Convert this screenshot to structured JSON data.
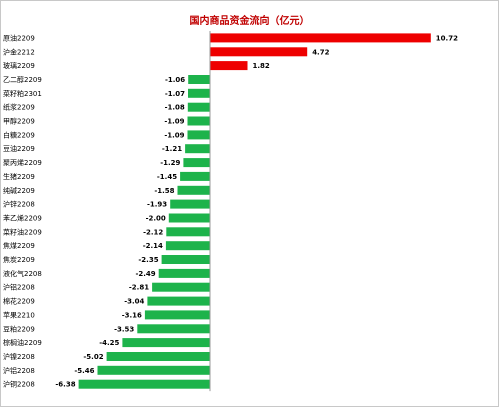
{
  "chart_data": {
    "type": "bar",
    "orientation": "horizontal",
    "title": "国内商品资金流向（亿元）",
    "categories": [
      "原油2209",
      "沪金2212",
      "玻璃2209",
      "乙二醇2209",
      "菜籽粕2301",
      "纸浆2209",
      "甲醇2209",
      "白糖2209",
      "豆油2209",
      "聚丙烯2209",
      "生猪2209",
      "纯碱2209",
      "沪锌2208",
      "苯乙烯2209",
      "菜籽油2209",
      "焦煤2209",
      "焦炭2209",
      "液化气2208",
      "沪铝2208",
      "棉花2209",
      "苹果2210",
      "豆粕2209",
      "棕榈油2209",
      "沪镍2208",
      "沪铝2208",
      "沪铜2208"
    ],
    "values": [
      10.72,
      4.72,
      1.82,
      -1.06,
      -1.07,
      -1.08,
      -1.09,
      -1.09,
      -1.21,
      -1.29,
      -1.45,
      -1.58,
      -1.93,
      -2.0,
      -2.12,
      -2.14,
      -2.35,
      -2.49,
      -2.81,
      -3.04,
      -3.16,
      -3.53,
      -4.25,
      -5.02,
      -5.46,
      -6.38
    ],
    "value_labels": [
      "10.72",
      "4.72",
      "1.82",
      "-1.06",
      "-1.07",
      "-1.08",
      "-1.09",
      "-1.09",
      "-1.21",
      "-1.29",
      "-1.45",
      "-1.58",
      "-1.93",
      "-2.00",
      "-2.12",
      "-2.14",
      "-2.35",
      "-2.49",
      "-2.81",
      "-3.04",
      "-3.16",
      "-3.53",
      "-4.25",
      "-5.02",
      "-5.46",
      "-6.38"
    ],
    "colors": {
      "positive": "#ee0000",
      "negative": "#1db34b",
      "title": "#c00000",
      "axis": "#999999"
    },
    "grid": false,
    "legend": "none"
  }
}
